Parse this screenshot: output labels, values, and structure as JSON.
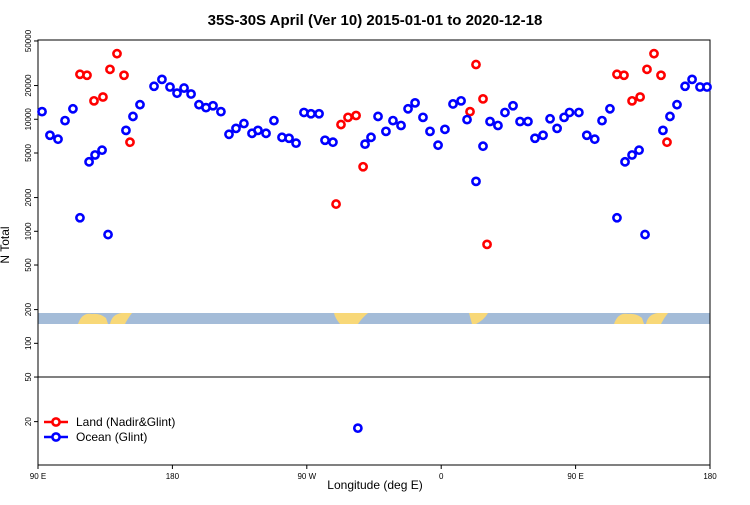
{
  "chart_data": {
    "type": "scatter",
    "title": "35S-30S April (Ver 10)   2015-01-01 to 2020-12-18",
    "xlabel": "Longitude (deg E)",
    "ylabel": "N Total",
    "xlim": [
      90,
      540
    ],
    "xticks": [
      {
        "value": 90,
        "label": "90 E"
      },
      180,
      {
        "value": 270,
        "label": "90 W"
      },
      {
        "value": 360,
        "label": "0"
      },
      {
        "value": 450,
        "label": "90 E"
      },
      {
        "value": 540,
        "label": "180"
      }
    ],
    "ylim": [
      8.2,
      51000
    ],
    "log_y": true,
    "yticks": [
      20,
      50,
      100,
      200,
      500,
      1000,
      2000,
      5000,
      10000,
      20000,
      50000
    ],
    "legend": "lower left",
    "series": [
      {
        "name": "Land (Nadir&Glint)",
        "color": "#ff0000",
        "x": [
          118.1,
          122.8,
          127.5,
          133.5,
          138.2,
          142.9,
          147.6,
          151.6,
          289.6,
          292.9,
          297.6,
          303,
          307.7,
          379.3,
          383.3,
          388,
          390.7,
          477.7,
          482.4,
          487.8,
          493.2,
          497.8,
          502.5,
          507.2,
          511.2
        ],
        "values": [
          25200,
          24700,
          14600,
          15800,
          27900,
          38500,
          24700,
          6240,
          1750,
          8970,
          10400,
          10800,
          3770,
          11700,
          30800,
          15200,
          764,
          25200,
          24700,
          14600,
          15800,
          27900,
          38500,
          24700,
          6240
        ]
      },
      {
        "name": "Ocean (Glint)",
        "color": "#0000ff",
        "x": [
          92.7,
          98,
          103.4,
          108.1,
          113.4,
          118.1,
          124.2,
          128.2,
          132.9,
          136.9,
          148.9,
          153.6,
          158.3,
          167.7,
          173,
          178.4,
          183.1,
          187.8,
          192.5,
          197.8,
          202.5,
          207.2,
          212.5,
          217.9,
          222.6,
          227.9,
          233.3,
          237.3,
          242.7,
          248,
          253.4,
          258.1,
          262.8,
          268.1,
          272.8,
          278.2,
          282.2,
          287.5,
          304.2,
          309,
          313,
          317.7,
          323,
          327.7,
          333.1,
          337.8,
          342.5,
          347.8,
          352.5,
          357.9,
          362.5,
          367.9,
          373.3,
          377.3,
          383.3,
          388,
          392.7,
          398,
          402.7,
          408.1,
          412.8,
          418.1,
          422.8,
          428.2,
          432.9,
          437.6,
          442.3,
          445.9,
          452.2,
          457.5,
          462.8,
          467.7,
          473,
          477.7,
          483.1,
          487.8,
          492.5,
          496.5,
          508.5,
          513.2,
          517.9,
          523.3,
          528,
          533.3,
          538
        ],
        "values": [
          11700,
          7200,
          6640,
          9730,
          12400,
          1320,
          4170,
          4800,
          5300,
          935,
          7960,
          10600,
          13500,
          19700,
          22700,
          19400,
          17100,
          19000,
          16800,
          13500,
          12700,
          13200,
          11700,
          7340,
          8290,
          9160,
          7490,
          7960,
          7490,
          9730,
          6900,
          6770,
          6120,
          11500,
          11200,
          11200,
          6500,
          6240,
          17.5,
          6000,
          6900,
          10600,
          7800,
          9730,
          8800,
          12400,
          14000,
          10400,
          7800,
          5870,
          8130,
          13700,
          14600,
          9930,
          2790,
          5750,
          9550,
          8800,
          11500,
          13200,
          9550,
          9550,
          6770,
          7200,
          10100,
          8290,
          10400,
          11500,
          11500,
          7200,
          6640,
          9730,
          12400,
          1320,
          4170,
          4800,
          5300,
          935,
          7960,
          10600,
          13500,
          19700,
          22700,
          19400,
          19400
        ]
      }
    ]
  }
}
